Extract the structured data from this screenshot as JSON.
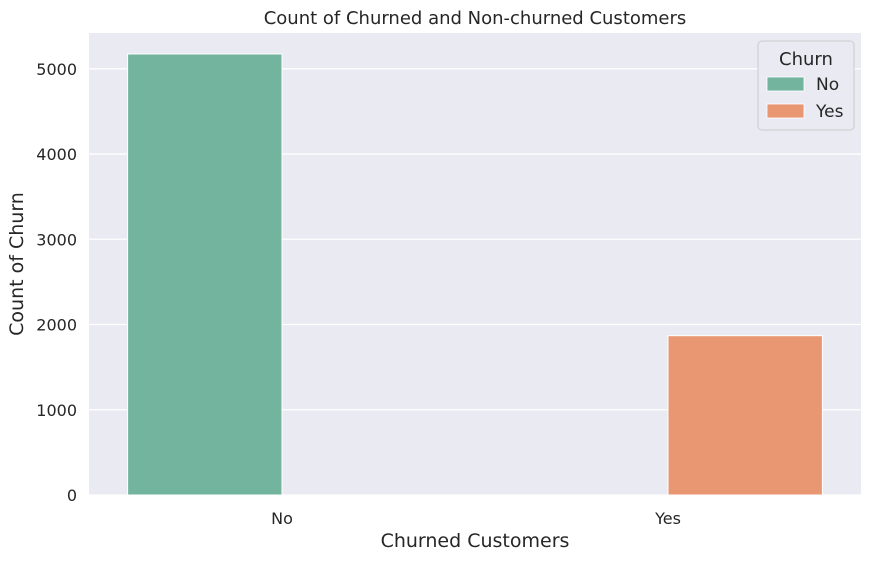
{
  "chart_data": {
    "type": "bar",
    "title": "Count of Churned and Non-churned Customers",
    "xlabel": "Churned Customers",
    "ylabel": "Count of Churn",
    "categories": [
      "No",
      "Yes"
    ],
    "series": [
      {
        "name": "No",
        "color": "#73b49f",
        "values": [
          5174,
          0
        ]
      },
      {
        "name": "Yes",
        "color": "#e99672",
        "values": [
          0,
          1869
        ]
      }
    ],
    "ylim": [
      0,
      5420
    ],
    "yticks": [
      0,
      1000,
      2000,
      3000,
      4000,
      5000
    ],
    "grid": true,
    "legend": {
      "title": "Churn",
      "placement": "top-right"
    },
    "style": {
      "plot_background": "#eaeaf2",
      "grid_color": "#ffffff"
    }
  }
}
